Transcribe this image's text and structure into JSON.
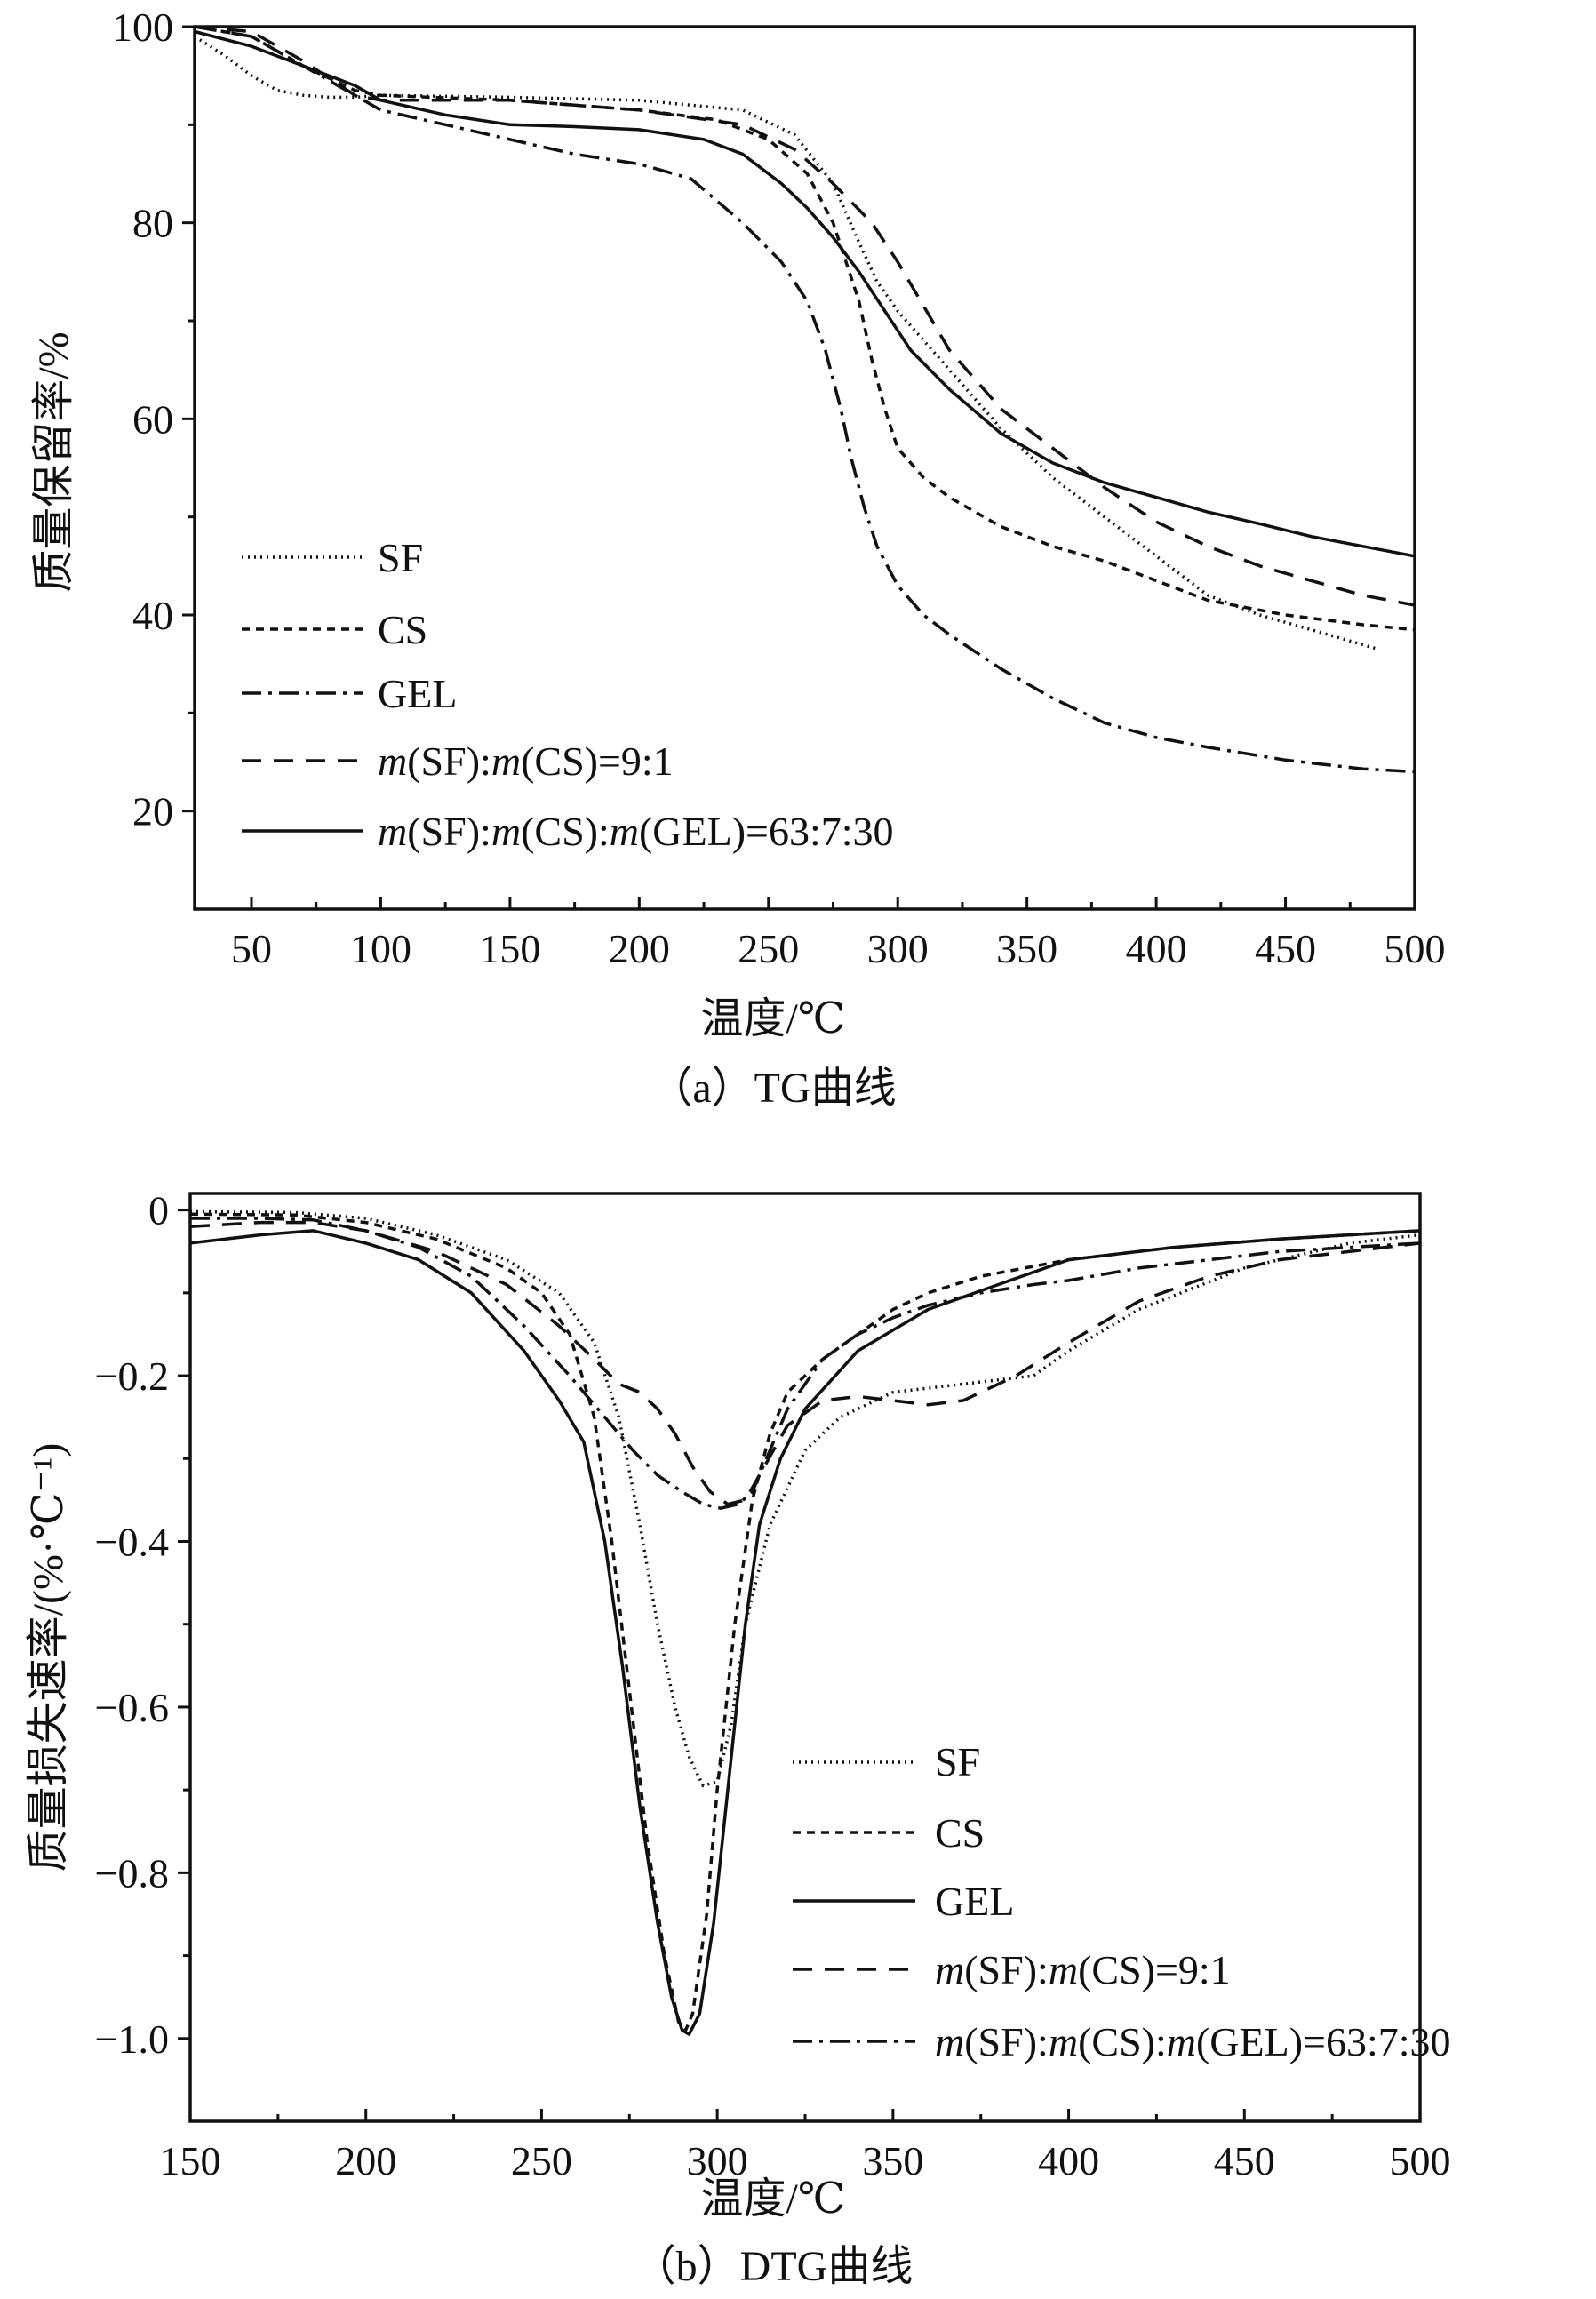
{
  "chart_data": [
    {
      "type": "line",
      "title": "（a）TG曲线",
      "xlabel": "温度/℃",
      "ylabel": "质量保留率/%",
      "xlim": [
        28,
        500
      ],
      "ylim": [
        10,
        100
      ],
      "xticks": [
        50,
        100,
        150,
        200,
        250,
        300,
        350,
        400,
        450,
        500
      ],
      "yticks": [
        20,
        40,
        60,
        80,
        100
      ],
      "tick_labels_x": [
        "50",
        "100",
        "150",
        "200",
        "250",
        "300",
        "350",
        "400",
        "450",
        "500"
      ],
      "tick_labels_y": [
        "20",
        "40",
        "60",
        "80",
        "100"
      ],
      "legend_position": "left",
      "series": [
        {
          "name": "SF",
          "style": "dotted",
          "x": [
            28,
            40,
            50,
            60,
            70,
            80,
            90,
            100,
            150,
            200,
            240,
            260,
            275,
            285,
            292,
            300,
            310,
            320,
            340,
            360,
            380,
            400,
            420,
            440,
            460,
            486
          ],
          "y": [
            99,
            97,
            95,
            93.5,
            93,
            92.8,
            92.8,
            93,
            92.8,
            92.5,
            91.5,
            89,
            84,
            78,
            74,
            71,
            68,
            65,
            59,
            54,
            50,
            46,
            42,
            40,
            38.5,
            36.5
          ]
        },
        {
          "name": "CS",
          "style": "dashed",
          "x": [
            28,
            50,
            70,
            90,
            100,
            150,
            200,
            230,
            250,
            265,
            275,
            285,
            290,
            295,
            300,
            310,
            320,
            340,
            360,
            380,
            400,
            420,
            450,
            480,
            500
          ],
          "y": [
            100,
            99,
            96,
            93.5,
            93,
            92.5,
            91.5,
            90.5,
            88.5,
            85,
            80,
            72,
            66,
            61,
            57,
            54,
            52,
            49,
            47,
            45.5,
            43.5,
            41.5,
            40,
            39,
            38.5
          ]
        },
        {
          "name": "GEL",
          "style": "dashdot",
          "x": [
            28,
            50,
            70,
            90,
            100,
            125,
            150,
            175,
            200,
            220,
            240,
            255,
            265,
            272,
            278,
            282,
            287,
            292,
            300,
            310,
            320,
            340,
            360,
            380,
            400,
            420,
            450,
            480,
            500
          ],
          "y": [
            100,
            99,
            96,
            93,
            91.5,
            90,
            88.5,
            87,
            86,
            84.5,
            80,
            76,
            72,
            67,
            61,
            56,
            51,
            47,
            43,
            40,
            38,
            34.5,
            31.5,
            29,
            27.5,
            26.5,
            25.2,
            24.3,
            24
          ]
        },
        {
          "name": "m(SF):m(CS)=9:1",
          "style": "longdash",
          "x": [
            28,
            50,
            70,
            90,
            100,
            150,
            200,
            240,
            260,
            275,
            290,
            300,
            310,
            320,
            340,
            360,
            380,
            400,
            420,
            440,
            460,
            480,
            500
          ],
          "y": [
            100,
            99.5,
            96.5,
            93,
            92.5,
            92.5,
            91.5,
            90,
            87.5,
            84,
            80,
            76,
            71.5,
            67,
            61,
            57,
            53,
            49.5,
            47,
            45,
            43.5,
            42,
            41
          ]
        },
        {
          "name": "m(SF):m(CS):m(GEL)=63:7:30",
          "style": "solid",
          "x": [
            28,
            50,
            70,
            90,
            100,
            125,
            150,
            175,
            200,
            225,
            240,
            255,
            265,
            275,
            285,
            295,
            305,
            320,
            340,
            360,
            380,
            400,
            420,
            440,
            460,
            480,
            500
          ],
          "y": [
            99.5,
            98,
            96,
            94,
            92.5,
            91,
            90,
            89.8,
            89.5,
            88.5,
            87,
            84,
            81.5,
            78.5,
            75,
            71,
            67,
            63,
            58.5,
            55.5,
            53.5,
            52,
            50.5,
            49.3,
            48,
            47,
            46
          ]
        }
      ]
    },
    {
      "type": "line",
      "title": "（b）DTG曲线",
      "xlabel": "温度/℃",
      "ylabel": "质量损失速率/(%·℃⁻¹)",
      "xlim": [
        150,
        500
      ],
      "ylim": [
        -1.1,
        0.02
      ],
      "xticks": [
        150,
        200,
        250,
        300,
        350,
        400,
        450,
        500
      ],
      "yticks": [
        0,
        -0.2,
        -0.4,
        -0.6,
        -0.8,
        -1.0
      ],
      "tick_labels_x": [
        "150",
        "200",
        "250",
        "300",
        "350",
        "400",
        "450",
        "500"
      ],
      "tick_labels_y": [
        "0",
        "−0.2",
        "−0.4",
        "−0.6",
        "−0.8",
        "−1.0"
      ],
      "legend_position": "bottom-right",
      "series": [
        {
          "name": "SF",
          "style": "dotted",
          "x": [
            150,
            180,
            200,
            220,
            240,
            255,
            265,
            272,
            278,
            283,
            288,
            292,
            296,
            300,
            304,
            308,
            315,
            325,
            335,
            350,
            370,
            390,
            400,
            420,
            450,
            480,
            500
          ],
          "y": [
            -0.002,
            -0.003,
            -0.01,
            -0.03,
            -0.06,
            -0.1,
            -0.16,
            -0.25,
            -0.38,
            -0.5,
            -0.6,
            -0.66,
            -0.695,
            -0.69,
            -0.62,
            -0.5,
            -0.38,
            -0.29,
            -0.25,
            -0.22,
            -0.21,
            -0.2,
            -0.17,
            -0.12,
            -0.07,
            -0.04,
            -0.03
          ]
        },
        {
          "name": "CS",
          "style": "dashed",
          "x": [
            150,
            180,
            200,
            220,
            240,
            250,
            258,
            265,
            270,
            275,
            280,
            285,
            289,
            291,
            293,
            297,
            300,
            305,
            310,
            315,
            320,
            330,
            340,
            350,
            360,
            375,
            400,
            430,
            460,
            500
          ],
          "y": [
            -0.005,
            -0.006,
            -0.015,
            -0.035,
            -0.07,
            -0.1,
            -0.15,
            -0.25,
            -0.4,
            -0.58,
            -0.76,
            -0.9,
            -0.98,
            -0.99,
            -0.97,
            -0.85,
            -0.7,
            -0.5,
            -0.35,
            -0.27,
            -0.22,
            -0.18,
            -0.15,
            -0.12,
            -0.1,
            -0.08,
            -0.06,
            -0.045,
            -0.035,
            -0.025
          ]
        },
        {
          "name": "GEL",
          "style": "solid",
          "x": [
            150,
            170,
            185,
            200,
            215,
            230,
            245,
            255,
            262,
            268,
            273,
            278,
            283,
            287,
            290,
            292,
            295,
            299,
            303,
            308,
            312,
            318,
            325,
            340,
            360,
            380,
            400,
            430,
            460,
            500
          ],
          "y": [
            -0.04,
            -0.03,
            -0.025,
            -0.04,
            -0.06,
            -0.1,
            -0.17,
            -0.23,
            -0.28,
            -0.4,
            -0.55,
            -0.72,
            -0.86,
            -0.95,
            -0.99,
            -0.995,
            -0.97,
            -0.86,
            -0.7,
            -0.5,
            -0.38,
            -0.3,
            -0.24,
            -0.17,
            -0.12,
            -0.09,
            -0.06,
            -0.045,
            -0.035,
            -0.025
          ]
        },
        {
          "name": "m(SF):m(CS)=9:1",
          "style": "longdash",
          "x": [
            150,
            170,
            185,
            200,
            220,
            240,
            255,
            265,
            272,
            278,
            283,
            288,
            293,
            298,
            303,
            308,
            312,
            320,
            330,
            340,
            350,
            360,
            370,
            385,
            400,
            420,
            440,
            460,
            480,
            500
          ],
          "y": [
            -0.02,
            -0.015,
            -0.015,
            -0.025,
            -0.05,
            -0.09,
            -0.14,
            -0.18,
            -0.21,
            -0.22,
            -0.24,
            -0.27,
            -0.31,
            -0.34,
            -0.355,
            -0.35,
            -0.32,
            -0.26,
            -0.23,
            -0.225,
            -0.23,
            -0.235,
            -0.23,
            -0.2,
            -0.16,
            -0.11,
            -0.08,
            -0.06,
            -0.05,
            -0.04
          ]
        },
        {
          "name": "m(SF):m(CS):m(GEL)=63:7:30",
          "style": "dashdot",
          "x": [
            150,
            170,
            185,
            200,
            215,
            230,
            245,
            258,
            268,
            276,
            283,
            290,
            296,
            301,
            306,
            310,
            314,
            320,
            330,
            340,
            350,
            360,
            375,
            390,
            400,
            420,
            440,
            460,
            480,
            500
          ],
          "y": [
            -0.01,
            -0.01,
            -0.012,
            -0.025,
            -0.045,
            -0.08,
            -0.14,
            -0.2,
            -0.25,
            -0.29,
            -0.32,
            -0.34,
            -0.355,
            -0.36,
            -0.355,
            -0.34,
            -0.3,
            -0.24,
            -0.18,
            -0.15,
            -0.13,
            -0.115,
            -0.1,
            -0.09,
            -0.085,
            -0.07,
            -0.06,
            -0.05,
            -0.045,
            -0.04
          ]
        }
      ]
    }
  ]
}
